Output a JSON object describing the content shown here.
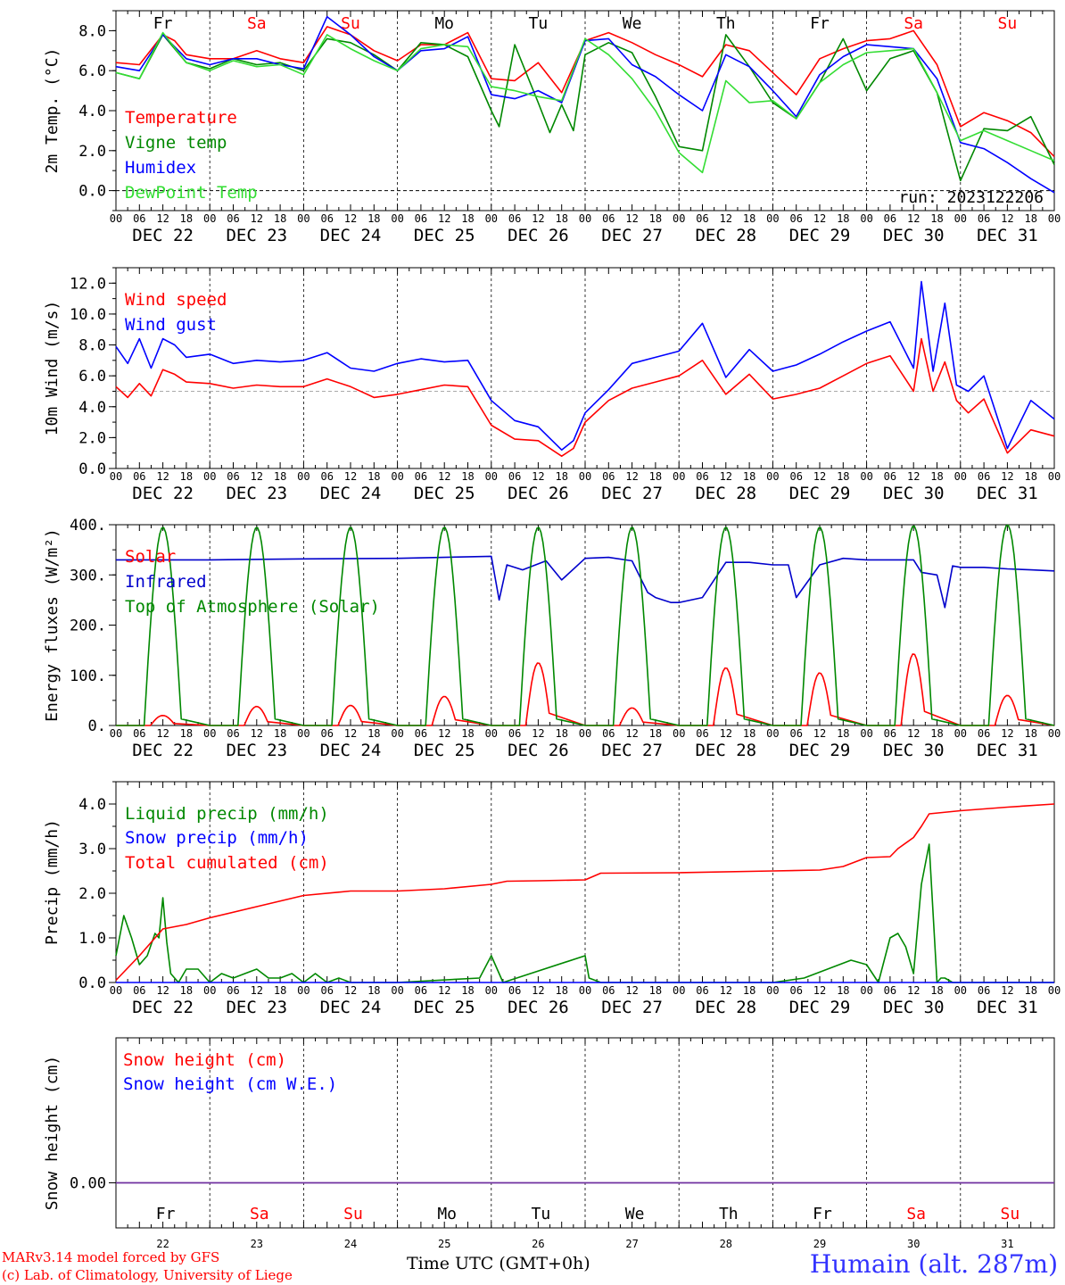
{
  "run_label": "run: 2023122206",
  "x_axis": {
    "hour_ticks": [
      "00",
      "06",
      "12",
      "18"
    ],
    "date_labels": [
      "DEC 22",
      "DEC 23",
      "DEC 24",
      "DEC 25",
      "DEC 26",
      "DEC 27",
      "DEC 28",
      "DEC 29",
      "DEC 30",
      "DEC 31"
    ],
    "weekday_labels": [
      "Fr",
      "Sa",
      "Su",
      "Mo",
      "Tu",
      "We",
      "Th",
      "Fr",
      "Sa",
      "Su"
    ],
    "weekend_color": "#ff0000",
    "day_numbers": [
      "22",
      "23",
      "24",
      "25",
      "26",
      "27",
      "28",
      "29",
      "30",
      "31"
    ],
    "title": "Time UTC (GMT+0h)"
  },
  "footer": {
    "model": "MARv3.14 model forced by GFS",
    "credit": "(c) Lab. of Climatology, University of Liege",
    "station": "Humain (alt. 287m)"
  },
  "chart_data": [
    {
      "type": "line",
      "ylabel": "2m Temp. (°C)",
      "ylim": [
        -1.0,
        9.0
      ],
      "yticks": [
        "0.0",
        "2.0",
        "4.0",
        "6.0",
        "8.0"
      ],
      "ref_line": 0.0,
      "legend": [
        "Temperature",
        "Vigne temp",
        "Humidex",
        "DewPoint Temp"
      ],
      "x_unit": "hours since Dec 22 00 UTC",
      "series": [
        {
          "name": "Temperature",
          "color": "#ff0000",
          "x": [
            0,
            6,
            12,
            15,
            18,
            24,
            30,
            36,
            42,
            48,
            54,
            60,
            66,
            72,
            78,
            84,
            90,
            96,
            102,
            108,
            114,
            120,
            126,
            132,
            138,
            144,
            150,
            156,
            162,
            168,
            174,
            180,
            186,
            192,
            198,
            204,
            210,
            216,
            222,
            228,
            234,
            240
          ],
          "y": [
            6.4,
            6.3,
            7.8,
            7.5,
            6.8,
            6.6,
            6.6,
            7.0,
            6.6,
            6.4,
            8.2,
            7.8,
            7.0,
            6.5,
            7.3,
            7.3,
            7.9,
            5.6,
            5.5,
            6.4,
            4.9,
            7.5,
            7.9,
            7.4,
            6.8,
            6.3,
            5.7,
            7.3,
            7.0,
            5.9,
            4.8,
            6.6,
            7.1,
            7.5,
            7.6,
            8.0,
            6.3,
            3.2,
            3.9,
            3.5,
            2.9,
            1.7
          ]
        },
        {
          "name": "Vigne temp",
          "color": "#008800",
          "x": [
            0,
            6,
            12,
            18,
            24,
            30,
            36,
            42,
            48,
            54,
            60,
            66,
            72,
            78,
            84,
            90,
            96,
            98,
            102,
            108,
            111,
            114,
            117,
            120,
            126,
            132,
            138,
            144,
            150,
            156,
            162,
            168,
            174,
            180,
            186,
            192,
            198,
            204,
            210,
            216,
            222,
            228,
            234,
            240
          ],
          "y": [
            5.9,
            5.6,
            7.8,
            6.4,
            6.1,
            6.6,
            6.3,
            6.4,
            6.0,
            7.6,
            7.4,
            6.8,
            6.0,
            7.4,
            7.3,
            6.7,
            4.0,
            3.2,
            7.3,
            4.4,
            2.9,
            4.3,
            3.0,
            6.8,
            7.4,
            6.9,
            4.7,
            2.2,
            2.0,
            7.8,
            6.2,
            4.4,
            3.6,
            5.4,
            7.6,
            5.0,
            6.6,
            7.0,
            4.9,
            0.5,
            3.1,
            3.0,
            3.7,
            1.3
          ]
        },
        {
          "name": "Humidex",
          "color": "#0000ff",
          "x": [
            0,
            6,
            12,
            18,
            24,
            30,
            36,
            42,
            48,
            54,
            60,
            66,
            72,
            78,
            84,
            90,
            96,
            102,
            108,
            114,
            120,
            126,
            132,
            138,
            144,
            150,
            156,
            162,
            168,
            174,
            180,
            186,
            192,
            198,
            204,
            210,
            216,
            222,
            228,
            234,
            240
          ],
          "y": [
            6.2,
            6.0,
            7.8,
            6.6,
            6.3,
            6.6,
            6.6,
            6.3,
            6.1,
            8.7,
            7.8,
            6.7,
            6.0,
            7.0,
            7.1,
            7.7,
            4.8,
            4.6,
            5.0,
            4.4,
            7.5,
            7.6,
            6.3,
            5.7,
            4.8,
            4.0,
            6.8,
            6.2,
            5.0,
            3.7,
            5.8,
            6.7,
            7.3,
            7.2,
            7.1,
            5.6,
            2.4,
            2.1,
            1.4,
            0.6,
            -0.1
          ]
        },
        {
          "name": "DewPoint Temp",
          "color": "#33dd33",
          "x": [
            0,
            6,
            12,
            18,
            24,
            30,
            36,
            42,
            48,
            54,
            60,
            66,
            72,
            78,
            84,
            90,
            96,
            102,
            108,
            114,
            120,
            126,
            132,
            138,
            144,
            150,
            156,
            162,
            168,
            174,
            180,
            186,
            192,
            198,
            204,
            210,
            216,
            222,
            228,
            234,
            240
          ],
          "y": [
            5.9,
            5.6,
            7.9,
            6.4,
            6.0,
            6.5,
            6.2,
            6.3,
            5.8,
            7.8,
            7.1,
            6.5,
            6.0,
            7.1,
            7.3,
            7.2,
            5.2,
            5.0,
            4.7,
            4.5,
            7.6,
            6.8,
            5.6,
            4.0,
            1.9,
            0.9,
            5.5,
            4.4,
            4.5,
            3.6,
            5.4,
            6.3,
            6.9,
            7.0,
            7.1,
            4.9,
            2.5,
            3.0,
            2.5,
            2.0,
            1.5
          ]
        }
      ]
    },
    {
      "type": "line",
      "ylabel": "10m Wind (m/s)",
      "ylim": [
        0.0,
        13.0
      ],
      "yticks": [
        "0.0",
        "2.0",
        "4.0",
        "6.0",
        "8.0",
        "10.0",
        "12.0"
      ],
      "ref_line": 5.0,
      "legend": [
        "Wind speed",
        "Wind gust"
      ],
      "series": [
        {
          "name": "Wind speed",
          "color": "#ff0000",
          "x": [
            0,
            3,
            6,
            9,
            12,
            15,
            18,
            24,
            30,
            36,
            42,
            48,
            54,
            60,
            66,
            72,
            78,
            84,
            90,
            96,
            102,
            108,
            114,
            117,
            120,
            126,
            132,
            138,
            144,
            150,
            156,
            162,
            168,
            174,
            180,
            186,
            192,
            198,
            204,
            206,
            209,
            212,
            215,
            218,
            222,
            228,
            234,
            240
          ],
          "y": [
            5.3,
            4.6,
            5.5,
            4.7,
            6.4,
            6.1,
            5.6,
            5.5,
            5.2,
            5.4,
            5.3,
            5.3,
            5.8,
            5.3,
            4.6,
            4.8,
            5.1,
            5.4,
            5.3,
            2.8,
            1.9,
            1.8,
            0.8,
            1.3,
            3.0,
            4.4,
            5.2,
            5.6,
            6.0,
            7.0,
            4.8,
            6.1,
            4.5,
            4.8,
            5.2,
            6.0,
            6.8,
            7.3,
            5.0,
            8.4,
            5.0,
            6.9,
            4.4,
            3.6,
            4.5,
            1.0,
            2.5,
            2.1
          ]
        },
        {
          "name": "Wind gust",
          "color": "#0000ff",
          "x": [
            0,
            3,
            6,
            9,
            12,
            15,
            18,
            24,
            30,
            36,
            42,
            48,
            54,
            60,
            66,
            72,
            78,
            84,
            90,
            96,
            102,
            108,
            114,
            117,
            120,
            126,
            132,
            138,
            144,
            150,
            156,
            162,
            168,
            174,
            180,
            186,
            192,
            198,
            204,
            206,
            209,
            212,
            215,
            218,
            222,
            228,
            234,
            240
          ],
          "y": [
            7.9,
            6.8,
            8.4,
            6.5,
            8.4,
            8.0,
            7.2,
            7.4,
            6.8,
            7.0,
            6.9,
            7.0,
            7.5,
            6.5,
            6.3,
            6.8,
            7.1,
            6.9,
            7.0,
            4.4,
            3.1,
            2.7,
            1.2,
            1.8,
            3.6,
            5.1,
            6.8,
            7.2,
            7.6,
            9.4,
            5.9,
            7.7,
            6.3,
            6.7,
            7.4,
            8.2,
            8.9,
            9.5,
            6.5,
            12.1,
            6.3,
            10.7,
            5.4,
            5.0,
            6.0,
            1.3,
            4.4,
            3.2
          ]
        }
      ]
    },
    {
      "type": "line",
      "ylabel": "Energy fluxes (W/m²)",
      "ylim": [
        0,
        400
      ],
      "yticks": [
        "0.",
        "100.",
        "200.",
        "300.",
        "400."
      ],
      "legend": [
        "Solar",
        "Infrared",
        "Top of Atmosphere (Solar)"
      ],
      "series": [
        {
          "name": "Solar",
          "color": "#ff0000",
          "day_peaks": [
            20,
            38,
            40,
            58,
            125,
            35,
            115,
            105,
            143,
            60
          ]
        },
        {
          "name": "Infrared",
          "color": "#0000cc",
          "x": [
            0,
            24,
            48,
            72,
            96,
            98,
            100,
            104,
            110,
            114,
            120,
            126,
            132,
            136,
            138,
            142,
            144,
            150,
            156,
            162,
            168,
            172,
            174,
            180,
            186,
            192,
            198,
            204,
            206,
            210,
            212,
            214,
            216,
            222,
            228,
            234,
            240
          ],
          "y": [
            330,
            330,
            332,
            333,
            337,
            250,
            320,
            310,
            328,
            290,
            333,
            335,
            328,
            265,
            255,
            245,
            245,
            255,
            325,
            325,
            320,
            320,
            255,
            320,
            333,
            330,
            330,
            330,
            305,
            300,
            235,
            318,
            315,
            315,
            312,
            310,
            308
          ]
        },
        {
          "name": "Top of Atmosphere (Solar)",
          "color": "#008800",
          "day_peaks": [
            395,
            395,
            395,
            395,
            395,
            395,
            395,
            395,
            398,
            400
          ]
        }
      ]
    },
    {
      "type": "line",
      "ylabel": "Precip (mm/h)",
      "ylim": [
        0.0,
        4.5
      ],
      "yticks": [
        "0.0",
        "1.0",
        "2.0",
        "3.0",
        "4.0"
      ],
      "legend": [
        "Liquid precip (mm/h)",
        "Snow precip (mm/h)",
        "Total cumulated (cm)"
      ],
      "series": [
        {
          "name": "Liquid precip (mm/h)",
          "color": "#008800",
          "x": [
            0,
            2,
            4,
            6,
            8,
            10,
            11,
            12,
            13,
            14,
            16,
            18,
            21,
            24,
            27,
            30,
            33,
            36,
            39,
            42,
            45,
            48,
            51,
            54,
            57,
            60,
            72,
            93,
            96,
            99,
            120,
            121,
            124,
            144,
            168,
            176,
            188,
            192,
            195,
            198,
            200,
            202,
            204,
            206,
            208,
            210,
            211,
            212,
            214,
            216,
            240
          ],
          "y": [
            0.6,
            1.5,
            1.0,
            0.4,
            0.6,
            1.1,
            1.0,
            1.9,
            0.9,
            0.2,
            0.0,
            0.3,
            0.3,
            0.0,
            0.2,
            0.1,
            0.2,
            0.3,
            0.1,
            0.1,
            0.2,
            0.0,
            0.2,
            0.0,
            0.1,
            0.0,
            0.0,
            0.1,
            0.6,
            0.0,
            0.6,
            0.1,
            0.0,
            0.0,
            0.0,
            0.1,
            0.5,
            0.4,
            0.0,
            1.0,
            1.1,
            0.8,
            0.2,
            2.2,
            3.1,
            0.0,
            0.1,
            0.1,
            0.0,
            0.0,
            0.0
          ]
        },
        {
          "name": "Snow precip (mm/h)",
          "color": "#0000ff",
          "x": [
            0,
            240
          ],
          "y": [
            0.0,
            0.0
          ]
        },
        {
          "name": "Total cumulated (cm)",
          "color": "#ff0000",
          "x": [
            0,
            6,
            12,
            18,
            24,
            36,
            48,
            60,
            72,
            84,
            96,
            100,
            108,
            120,
            124,
            144,
            168,
            180,
            186,
            192,
            198,
            200,
            204,
            206,
            208,
            216,
            228,
            240
          ],
          "y": [
            0.05,
            0.6,
            1.2,
            1.3,
            1.45,
            1.7,
            1.95,
            2.05,
            2.05,
            2.1,
            2.2,
            2.27,
            2.28,
            2.3,
            2.45,
            2.46,
            2.5,
            2.52,
            2.6,
            2.8,
            2.82,
            3.0,
            3.25,
            3.5,
            3.78,
            3.85,
            3.93,
            4.0
          ]
        }
      ]
    },
    {
      "type": "line",
      "ylabel": "Snow height (cm)",
      "yticks": [
        "0.00"
      ],
      "legend": [
        "Snow height (cm)",
        "Snow height (cm W.E.)"
      ],
      "series": [
        {
          "name": "Snow height (cm)",
          "color": "#ff0000",
          "x": [
            0,
            240
          ],
          "y": [
            0,
            0
          ]
        },
        {
          "name": "Snow height (cm W.E.)",
          "color": "#0000ff",
          "x": [
            0,
            240
          ],
          "y": [
            0,
            0
          ]
        }
      ],
      "line_color": "#7030a0"
    }
  ]
}
